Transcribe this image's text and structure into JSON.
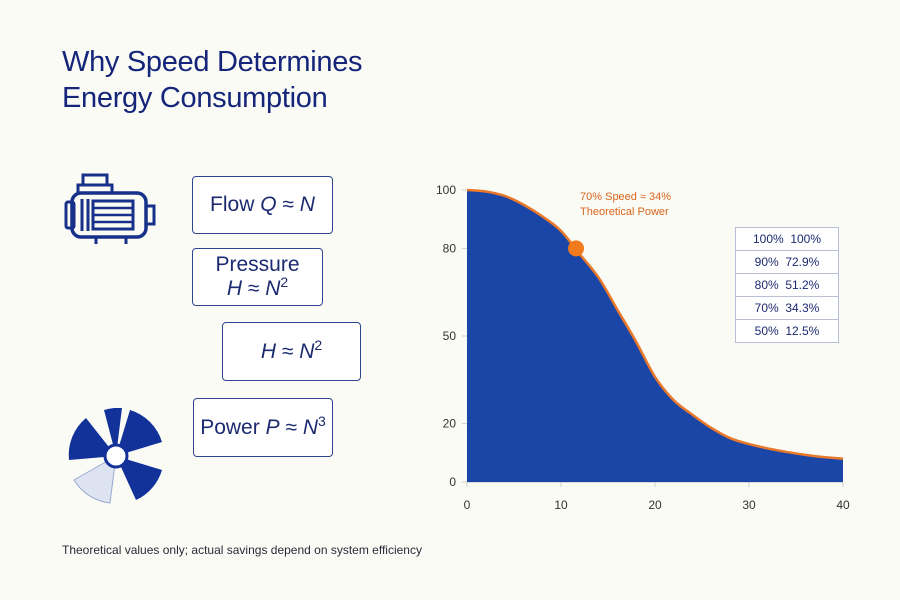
{
  "title": {
    "line1": "Why Speed Determines",
    "line2": "Energy Consumption"
  },
  "formulas": {
    "flow": {
      "label": "Flow",
      "var": "Q",
      "rel": "≈",
      "base": "N",
      "exp": ""
    },
    "pressure": {
      "label": "Pressure",
      "var": "H",
      "rel": "≈",
      "base": "N",
      "exp": "2"
    },
    "head": {
      "label": "",
      "var": "H",
      "rel": "≈",
      "base": "N",
      "exp": "2"
    },
    "power": {
      "label": "Power",
      "var": "P",
      "rel": "≈",
      "base": "N",
      "exp": "3"
    }
  },
  "icons": {
    "motor": "electric-motor-icon",
    "fan": "fan-impeller-icon"
  },
  "colors": {
    "title": "#14257a",
    "area_fill": "#1a46a8",
    "curve_line": "#e8782a",
    "marker": "#f07a1c",
    "annotation": "#d9651c"
  },
  "chart_data": {
    "type": "area",
    "title": "",
    "xlabel": "",
    "ylabel": "",
    "xlim": [
      0,
      40
    ],
    "ylim": [
      0,
      100
    ],
    "x_ticks": [
      "0",
      "10",
      "20",
      "30",
      "40"
    ],
    "y_ticks": [
      "0",
      "20",
      "50",
      "80",
      "100"
    ],
    "x": [
      0,
      2,
      4,
      6,
      8,
      10,
      12,
      14,
      16,
      18,
      20,
      22,
      24,
      26,
      28,
      30,
      32,
      34,
      36,
      38,
      40
    ],
    "y": [
      100,
      99.5,
      98,
      95,
      91,
      86,
      78,
      70,
      59,
      48,
      36,
      28,
      23,
      18.5,
      15,
      13,
      11.5,
      10.3,
      9.3,
      8.5,
      8
    ],
    "marker": {
      "x": 11.6,
      "y": 80
    },
    "annotation": {
      "line1": "70% Speed ≈ 34%",
      "line2": "Theoretical Power"
    },
    "table": [
      {
        "speed": "100%",
        "power": "100%"
      },
      {
        "speed": "90%",
        "power": "72.9%"
      },
      {
        "speed": "80%",
        "power": "51.2%"
      },
      {
        "speed": "70%",
        "power": "34.3%"
      },
      {
        "speed": "50%",
        "power": "12.5%"
      }
    ],
    "grid": false,
    "legend": "none"
  },
  "footnote": "Theoretical values only; actual savings depend on system efficiency"
}
